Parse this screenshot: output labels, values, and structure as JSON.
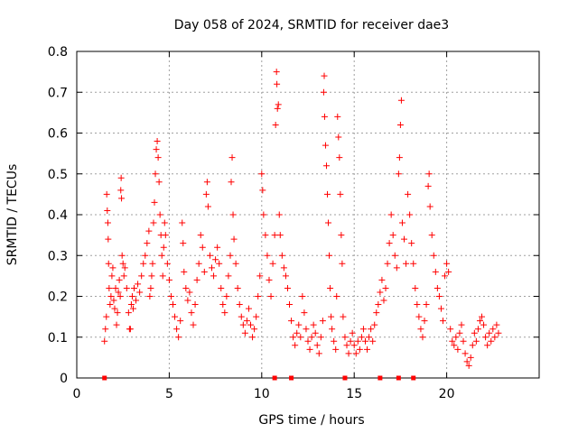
{
  "chart_data": {
    "type": "scatter",
    "title": "Day 058 of 2024, SRMTID for receiver dae3",
    "xlabel": "GPS time / hours",
    "ylabel": "SRMTID / TECUs",
    "xlim": [
      0,
      25
    ],
    "ylim": [
      0,
      0.8
    ],
    "x_ticks": [
      0,
      5,
      10,
      15,
      20
    ],
    "x_tick_labels": [
      "0",
      "5",
      "10",
      "15",
      "20"
    ],
    "y_ticks": [
      0,
      0.1,
      0.2,
      0.3,
      0.4,
      0.5,
      0.6,
      0.7,
      0.8
    ],
    "y_tick_labels": [
      "0",
      "0.1",
      "0.2",
      "0.3",
      "0.4",
      "0.5",
      "0.6",
      "0.7",
      "0.8"
    ],
    "grid": true,
    "marker": "+",
    "color": "#ff0000",
    "zero_markers_x": [
      1.5,
      10.7,
      11.6,
      14.5,
      16.4,
      17.4,
      18.2
    ],
    "series": [
      {
        "name": "SRMTID",
        "points": [
          [
            1.5,
            0.09
          ],
          [
            1.55,
            0.12
          ],
          [
            1.6,
            0.15
          ],
          [
            1.62,
            0.45
          ],
          [
            1.65,
            0.41
          ],
          [
            1.68,
            0.38
          ],
          [
            1.7,
            0.34
          ],
          [
            1.72,
            0.28
          ],
          [
            1.75,
            0.22
          ],
          [
            1.8,
            0.18
          ],
          [
            1.85,
            0.2
          ],
          [
            1.9,
            0.25
          ],
          [
            1.95,
            0.27
          ],
          [
            2.0,
            0.19
          ],
          [
            2.05,
            0.17
          ],
          [
            2.1,
            0.22
          ],
          [
            2.15,
            0.13
          ],
          [
            2.2,
            0.16
          ],
          [
            2.25,
            0.21
          ],
          [
            2.3,
            0.24
          ],
          [
            2.35,
            0.2
          ],
          [
            2.38,
            0.46
          ],
          [
            2.4,
            0.49
          ],
          [
            2.42,
            0.44
          ],
          [
            2.45,
            0.3
          ],
          [
            2.5,
            0.28
          ],
          [
            2.55,
            0.25
          ],
          [
            2.6,
            0.27
          ],
          [
            2.7,
            0.22
          ],
          [
            2.8,
            0.16
          ],
          [
            2.85,
            0.12
          ],
          [
            2.9,
            0.12
          ],
          [
            2.95,
            0.18
          ],
          [
            3.0,
            0.2
          ],
          [
            3.05,
            0.17
          ],
          [
            3.1,
            0.22
          ],
          [
            3.2,
            0.19
          ],
          [
            3.3,
            0.23
          ],
          [
            3.4,
            0.21
          ],
          [
            3.5,
            0.25
          ],
          [
            3.6,
            0.28
          ],
          [
            3.7,
            0.3
          ],
          [
            3.8,
            0.33
          ],
          [
            3.9,
            0.36
          ],
          [
            3.95,
            0.2
          ],
          [
            4.0,
            0.22
          ],
          [
            4.05,
            0.25
          ],
          [
            4.1,
            0.28
          ],
          [
            4.15,
            0.38
          ],
          [
            4.2,
            0.43
          ],
          [
            4.25,
            0.5
          ],
          [
            4.3,
            0.56
          ],
          [
            4.35,
            0.58
          ],
          [
            4.4,
            0.54
          ],
          [
            4.45,
            0.48
          ],
          [
            4.5,
            0.4
          ],
          [
            4.55,
            0.35
          ],
          [
            4.6,
            0.3
          ],
          [
            4.65,
            0.25
          ],
          [
            4.7,
            0.32
          ],
          [
            4.75,
            0.38
          ],
          [
            4.8,
            0.35
          ],
          [
            4.9,
            0.28
          ],
          [
            5.0,
            0.24
          ],
          [
            5.1,
            0.2
          ],
          [
            5.2,
            0.18
          ],
          [
            5.3,
            0.15
          ],
          [
            5.4,
            0.12
          ],
          [
            5.5,
            0.1
          ],
          [
            5.6,
            0.14
          ],
          [
            5.7,
            0.38
          ],
          [
            5.75,
            0.33
          ],
          [
            5.8,
            0.26
          ],
          [
            5.9,
            0.22
          ],
          [
            6.0,
            0.19
          ],
          [
            6.1,
            0.21
          ],
          [
            6.2,
            0.16
          ],
          [
            6.3,
            0.13
          ],
          [
            6.4,
            0.18
          ],
          [
            6.5,
            0.24
          ],
          [
            6.6,
            0.28
          ],
          [
            6.7,
            0.35
          ],
          [
            6.8,
            0.32
          ],
          [
            6.9,
            0.26
          ],
          [
            7.0,
            0.45
          ],
          [
            7.05,
            0.48
          ],
          [
            7.1,
            0.42
          ],
          [
            7.2,
            0.3
          ],
          [
            7.3,
            0.27
          ],
          [
            7.4,
            0.25
          ],
          [
            7.5,
            0.29
          ],
          [
            7.6,
            0.32
          ],
          [
            7.7,
            0.28
          ],
          [
            7.8,
            0.22
          ],
          [
            7.9,
            0.18
          ],
          [
            8.0,
            0.16
          ],
          [
            8.1,
            0.2
          ],
          [
            8.2,
            0.25
          ],
          [
            8.3,
            0.3
          ],
          [
            8.35,
            0.48
          ],
          [
            8.4,
            0.54
          ],
          [
            8.45,
            0.4
          ],
          [
            8.5,
            0.34
          ],
          [
            8.6,
            0.28
          ],
          [
            8.7,
            0.22
          ],
          [
            8.8,
            0.18
          ],
          [
            8.9,
            0.15
          ],
          [
            9.0,
            0.13
          ],
          [
            9.1,
            0.11
          ],
          [
            9.2,
            0.14
          ],
          [
            9.3,
            0.17
          ],
          [
            9.4,
            0.13
          ],
          [
            9.5,
            0.1
          ],
          [
            9.6,
            0.12
          ],
          [
            9.7,
            0.15
          ],
          [
            9.8,
            0.2
          ],
          [
            9.9,
            0.25
          ],
          [
            10.0,
            0.5
          ],
          [
            10.05,
            0.46
          ],
          [
            10.1,
            0.4
          ],
          [
            10.2,
            0.35
          ],
          [
            10.3,
            0.3
          ],
          [
            10.4,
            0.24
          ],
          [
            10.5,
            0.2
          ],
          [
            10.6,
            0.28
          ],
          [
            10.7,
            0.35
          ],
          [
            10.75,
            0.62
          ],
          [
            10.8,
            0.75
          ],
          [
            10.82,
            0.72
          ],
          [
            10.85,
            0.66
          ],
          [
            10.9,
            0.67
          ],
          [
            10.95,
            0.4
          ],
          [
            11.0,
            0.35
          ],
          [
            11.1,
            0.3
          ],
          [
            11.2,
            0.27
          ],
          [
            11.3,
            0.25
          ],
          [
            11.4,
            0.22
          ],
          [
            11.5,
            0.18
          ],
          [
            11.6,
            0.14
          ],
          [
            11.7,
            0.1
          ],
          [
            11.8,
            0.08
          ],
          [
            11.9,
            0.11
          ],
          [
            12.0,
            0.13
          ],
          [
            12.1,
            0.1
          ],
          [
            12.2,
            0.2
          ],
          [
            12.3,
            0.16
          ],
          [
            12.4,
            0.12
          ],
          [
            12.5,
            0.09
          ],
          [
            12.6,
            0.07
          ],
          [
            12.7,
            0.1
          ],
          [
            12.8,
            0.13
          ],
          [
            12.9,
            0.11
          ],
          [
            13.0,
            0.08
          ],
          [
            13.1,
            0.06
          ],
          [
            13.2,
            0.1
          ],
          [
            13.3,
            0.14
          ],
          [
            13.35,
            0.7
          ],
          [
            13.38,
            0.74
          ],
          [
            13.4,
            0.64
          ],
          [
            13.45,
            0.57
          ],
          [
            13.5,
            0.52
          ],
          [
            13.55,
            0.45
          ],
          [
            13.6,
            0.38
          ],
          [
            13.65,
            0.3
          ],
          [
            13.7,
            0.22
          ],
          [
            13.75,
            0.15
          ],
          [
            13.8,
            0.12
          ],
          [
            13.9,
            0.09
          ],
          [
            14.0,
            0.07
          ],
          [
            14.05,
            0.2
          ],
          [
            14.1,
            0.64
          ],
          [
            14.15,
            0.59
          ],
          [
            14.2,
            0.54
          ],
          [
            14.25,
            0.45
          ],
          [
            14.3,
            0.35
          ],
          [
            14.35,
            0.28
          ],
          [
            14.4,
            0.15
          ],
          [
            14.5,
            0.1
          ],
          [
            14.6,
            0.08
          ],
          [
            14.7,
            0.06
          ],
          [
            14.8,
            0.09
          ],
          [
            14.9,
            0.11
          ],
          [
            15.0,
            0.08
          ],
          [
            15.1,
            0.06
          ],
          [
            15.2,
            0.09
          ],
          [
            15.3,
            0.07
          ],
          [
            15.4,
            0.1
          ],
          [
            15.5,
            0.12
          ],
          [
            15.6,
            0.09
          ],
          [
            15.7,
            0.07
          ],
          [
            15.8,
            0.1
          ],
          [
            15.9,
            0.12
          ],
          [
            16.0,
            0.09
          ],
          [
            16.1,
            0.13
          ],
          [
            16.2,
            0.16
          ],
          [
            16.3,
            0.18
          ],
          [
            16.4,
            0.21
          ],
          [
            16.5,
            0.24
          ],
          [
            16.6,
            0.19
          ],
          [
            16.7,
            0.22
          ],
          [
            16.8,
            0.28
          ],
          [
            16.9,
            0.33
          ],
          [
            17.0,
            0.4
          ],
          [
            17.1,
            0.35
          ],
          [
            17.2,
            0.3
          ],
          [
            17.3,
            0.27
          ],
          [
            17.4,
            0.5
          ],
          [
            17.45,
            0.54
          ],
          [
            17.5,
            0.62
          ],
          [
            17.55,
            0.68
          ],
          [
            17.6,
            0.38
          ],
          [
            17.7,
            0.34
          ],
          [
            17.8,
            0.28
          ],
          [
            17.9,
            0.45
          ],
          [
            18.0,
            0.4
          ],
          [
            18.1,
            0.33
          ],
          [
            18.2,
            0.28
          ],
          [
            18.3,
            0.22
          ],
          [
            18.4,
            0.18
          ],
          [
            18.5,
            0.15
          ],
          [
            18.6,
            0.12
          ],
          [
            18.7,
            0.1
          ],
          [
            18.8,
            0.14
          ],
          [
            18.9,
            0.18
          ],
          [
            19.0,
            0.47
          ],
          [
            19.05,
            0.5
          ],
          [
            19.1,
            0.42
          ],
          [
            19.2,
            0.35
          ],
          [
            19.3,
            0.3
          ],
          [
            19.4,
            0.26
          ],
          [
            19.5,
            0.22
          ],
          [
            19.6,
            0.2
          ],
          [
            19.7,
            0.17
          ],
          [
            19.8,
            0.14
          ],
          [
            19.9,
            0.25
          ],
          [
            20.0,
            0.28
          ],
          [
            20.1,
            0.26
          ],
          [
            20.2,
            0.12
          ],
          [
            20.3,
            0.09
          ],
          [
            20.4,
            0.08
          ],
          [
            20.5,
            0.1
          ],
          [
            20.6,
            0.07
          ],
          [
            20.7,
            0.11
          ],
          [
            20.8,
            0.13
          ],
          [
            20.9,
            0.09
          ],
          [
            21.0,
            0.06
          ],
          [
            21.1,
            0.04
          ],
          [
            21.2,
            0.03
          ],
          [
            21.3,
            0.05
          ],
          [
            21.4,
            0.08
          ],
          [
            21.5,
            0.11
          ],
          [
            21.6,
            0.09
          ],
          [
            21.7,
            0.12
          ],
          [
            21.8,
            0.14
          ],
          [
            21.9,
            0.15
          ],
          [
            22.0,
            0.13
          ],
          [
            22.1,
            0.1
          ],
          [
            22.2,
            0.08
          ],
          [
            22.3,
            0.11
          ],
          [
            22.4,
            0.09
          ],
          [
            22.5,
            0.12
          ],
          [
            22.6,
            0.1
          ],
          [
            22.7,
            0.13
          ],
          [
            22.8,
            0.11
          ]
        ]
      }
    ]
  }
}
